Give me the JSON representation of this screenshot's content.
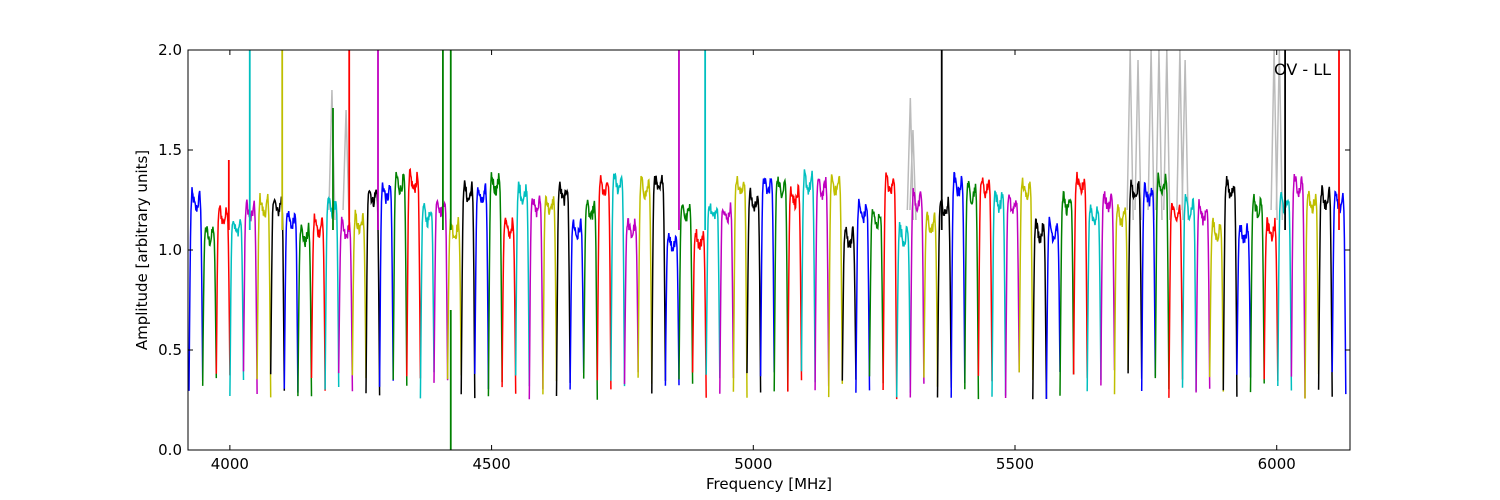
{
  "chart_data": {
    "type": "line",
    "title": "",
    "annotation": "OV - LL",
    "xlabel": "Frequency [MHz]",
    "ylabel": "Amplitude [arbitrary units]",
    "xlim": [
      3920,
      6140
    ],
    "ylim": [
      0.0,
      2.0
    ],
    "x_ticks": [
      4000,
      4500,
      5000,
      5500,
      6000
    ],
    "x_tick_labels": [
      "4000",
      "4500",
      "5000",
      "5500",
      "6000"
    ],
    "y_ticks": [
      0.0,
      0.5,
      1.0,
      1.5,
      2.0
    ],
    "y_tick_labels": [
      "0.0",
      "0.5",
      "1.0",
      "1.5",
      "2.0"
    ],
    "grid": false,
    "legend": "none",
    "color_cycle": [
      "#0000ff",
      "#008000",
      "#ff0000",
      "#00bfbf",
      "#bf00bf",
      "#bfbf00",
      "#000000"
    ],
    "background_trace_color": "#bbbbbb",
    "spw": {
      "start_mhz": 3922,
      "width_mhz": 26,
      "count": 85,
      "passband_level": [
        1.05,
        1.35
      ],
      "edge_min": [
        0.25,
        0.4
      ]
    },
    "spikes": [
      {
        "x": 3998,
        "y": 1.45,
        "color": "#ff0000"
      },
      {
        "x": 4038,
        "y": 2.0,
        "color": "#00bfbf"
      },
      {
        "x": 4100,
        "y": 2.0,
        "color": "#bfbf00"
      },
      {
        "x": 4197,
        "y": 1.71,
        "color": "#008000"
      },
      {
        "x": 4228,
        "y": 2.0,
        "color": "#ff0000"
      },
      {
        "x": 4283,
        "y": 2.0,
        "color": "#bf00bf"
      },
      {
        "x": 4407,
        "y": 2.0,
        "color": "#008000"
      },
      {
        "x": 4422,
        "y": 2.0,
        "color": "#008000"
      },
      {
        "x": 4858,
        "y": 2.0,
        "color": "#bf00bf"
      },
      {
        "x": 4908,
        "y": 2.0,
        "color": "#00bfbf"
      },
      {
        "x": 5360,
        "y": 2.0,
        "color": "#000000"
      },
      {
        "x": 6016,
        "y": 2.0,
        "color": "#000000"
      },
      {
        "x": 6119,
        "y": 2.0,
        "color": "#ff0000"
      }
    ],
    "dips": [
      {
        "x": 4422,
        "y": 0.0,
        "color": "#008000"
      }
    ],
    "gray_spikes": [
      {
        "x": 4195,
        "y": 1.8
      },
      {
        "x": 4222,
        "y": 1.7
      },
      {
        "x": 5300,
        "y": 1.76
      },
      {
        "x": 5305,
        "y": 1.6
      },
      {
        "x": 5720,
        "y": 2.0
      },
      {
        "x": 5735,
        "y": 1.95
      },
      {
        "x": 5760,
        "y": 2.0
      },
      {
        "x": 5775,
        "y": 2.0
      },
      {
        "x": 5790,
        "y": 2.0
      },
      {
        "x": 5815,
        "y": 2.0
      },
      {
        "x": 5825,
        "y": 1.95
      },
      {
        "x": 5995,
        "y": 2.0
      },
      {
        "x": 6005,
        "y": 2.0
      }
    ]
  }
}
